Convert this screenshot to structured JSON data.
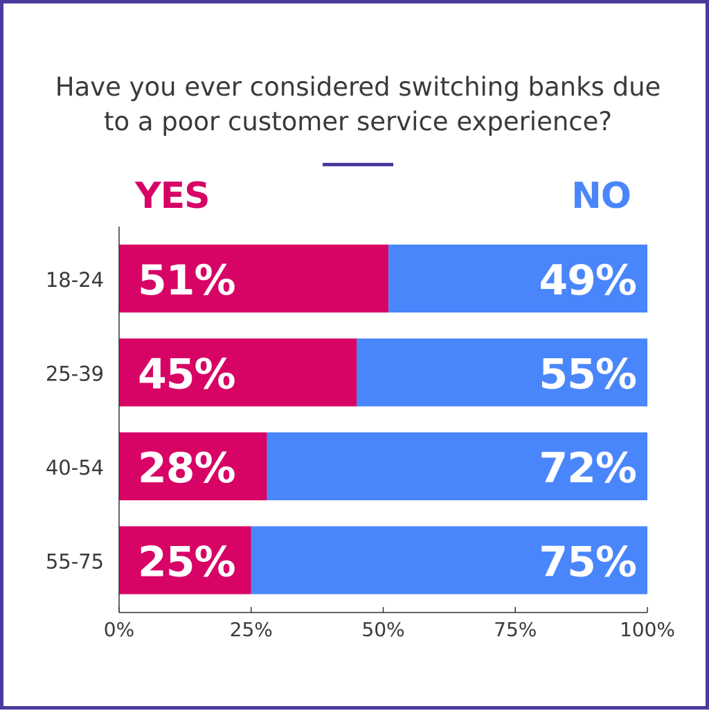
{
  "colors": {
    "frame": "#4b3a9c",
    "yes": "#d70466",
    "no": "#4a86fb",
    "text": "#3a3a3a",
    "axis": "#333333"
  },
  "chart_data": {
    "type": "bar",
    "orientation": "horizontal",
    "stacked": true,
    "title": [
      "Have you ever considered switching banks due",
      "to a poor customer service experience?"
    ],
    "categories": [
      "18-24",
      "25-39",
      "40-54",
      "55-75"
    ],
    "series": [
      {
        "name": "YES",
        "values": [
          51,
          45,
          28,
          25
        ]
      },
      {
        "name": "NO",
        "values": [
          49,
          55,
          72,
          75
        ]
      }
    ],
    "value_suffix": "%",
    "xlim": [
      0,
      100
    ],
    "xticks": [
      0,
      25,
      50,
      75,
      100
    ],
    "xtick_labels": [
      "0%",
      "25%",
      "50%",
      "75%",
      "100%"
    ],
    "legend_placement": "top",
    "grid": false
  }
}
